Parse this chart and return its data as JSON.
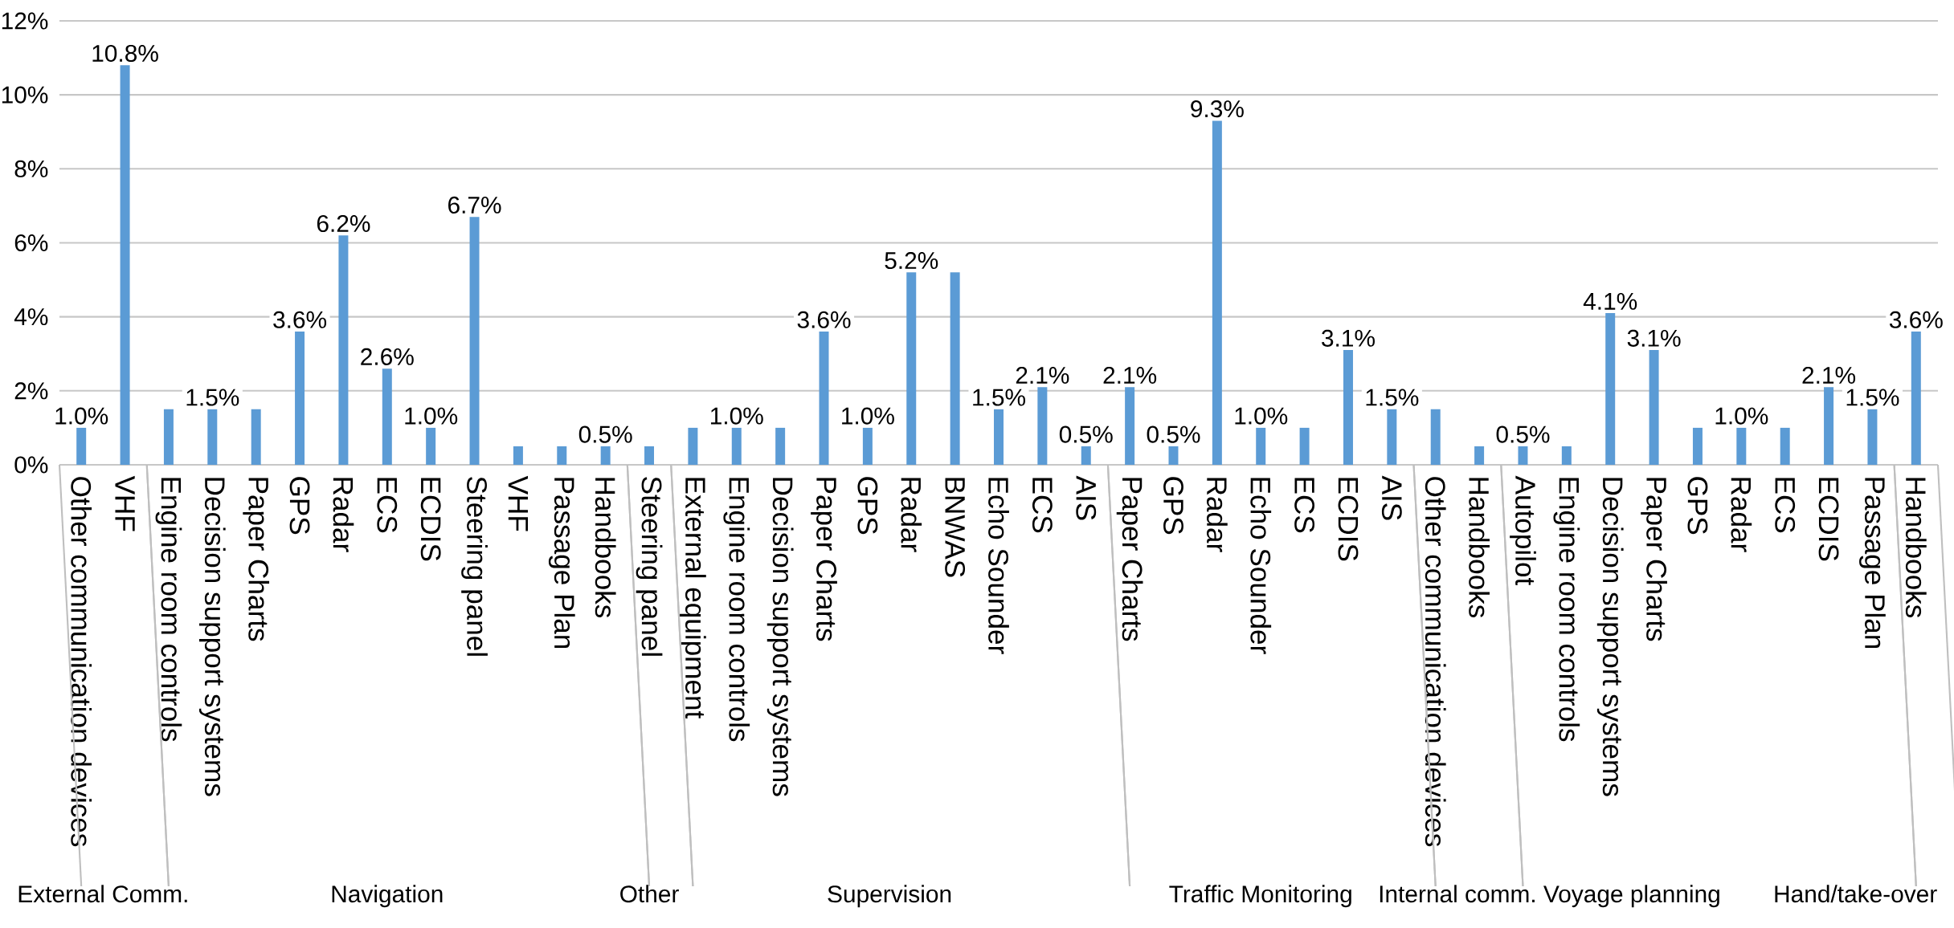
{
  "chart_data": {
    "type": "bar",
    "color": "#5b9bd5",
    "categories": [
      "Other communication devices",
      "VHF",
      "Engine room controls",
      "Decision support systems",
      "Paper Charts",
      "GPS",
      "Radar",
      "ECS",
      "ECDIS",
      "Steering panel",
      "VHF",
      "Passage Plan",
      "Handbooks",
      "Steering panel",
      "External equipment",
      "Engine room controls",
      "Decision support systems",
      "Paper Charts",
      "GPS",
      "Radar",
      "BNWAS",
      "Echo Sounder",
      "ECS",
      "AIS",
      "Paper Charts",
      "GPS",
      "Radar",
      "Echo Sounder",
      "ECS",
      "ECDIS",
      "AIS",
      "Other communication devices",
      "Handbooks",
      "Autopilot",
      "Engine room controls",
      "Decision support systems",
      "Paper Charts",
      "GPS",
      "Radar",
      "ECS",
      "ECDIS",
      "Passage Plan",
      "Handbooks"
    ],
    "values": [
      1.0,
      10.8,
      1.5,
      1.5,
      1.5,
      3.6,
      6.2,
      2.6,
      1.0,
      6.7,
      0.5,
      0.5,
      0.5,
      0.5,
      1.0,
      1.0,
      1.0,
      3.6,
      1.0,
      5.2,
      5.2,
      1.5,
      2.1,
      0.5,
      2.1,
      0.5,
      9.3,
      1.0,
      1.0,
      3.1,
      1.5,
      1.5,
      0.5,
      0.5,
      0.5,
      4.1,
      3.1,
      1.0,
      1.0,
      1.0,
      2.1,
      1.5,
      3.6
    ],
    "value_labels": [
      "1.0%",
      "10.8%",
      null,
      "1.5%",
      null,
      "3.6%",
      "6.2%",
      "2.6%",
      "1.0%",
      "6.7%",
      null,
      null,
      "0.5%",
      null,
      null,
      "1.0%",
      null,
      "3.6%",
      "1.0%",
      "5.2%",
      null,
      "1.5%",
      "2.1%",
      "0.5%",
      "2.1%",
      "0.5%",
      "9.3%",
      "1.0%",
      null,
      "3.1%",
      "1.5%",
      null,
      null,
      "0.5%",
      null,
      "4.1%",
      "3.1%",
      null,
      "1.0%",
      null,
      "2.1%",
      "1.5%",
      "3.6%"
    ],
    "ylim": [
      0,
      12
    ],
    "yticks": [
      {
        "value": 0,
        "label": "0%"
      },
      {
        "value": 2,
        "label": "2%"
      },
      {
        "value": 4,
        "label": "4%"
      },
      {
        "value": 6,
        "label": "6%"
      },
      {
        "value": 8,
        "label": "8%"
      },
      {
        "value": 10,
        "label": "10%"
      },
      {
        "value": 12,
        "label": "12%"
      }
    ],
    "grid": "y",
    "annotations": [
      "External Comm.",
      "Navigation",
      "Other",
      "Supervision",
      "Traffic Monitoring",
      "Internal comm.",
      "Voyage planning",
      "Hand/take-over"
    ]
  }
}
